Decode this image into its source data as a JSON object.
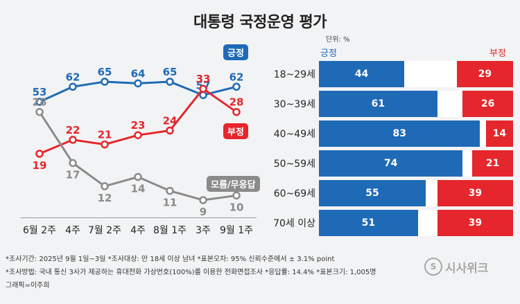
{
  "title": "대통령 국정운영 평가",
  "unit": "단위: %",
  "chart_data": [
    {
      "type": "line",
      "categories": [
        "6월 2주",
        "4주",
        "7월 2주",
        "4주",
        "8월 1주",
        "3주",
        "9월 1주"
      ],
      "series": [
        {
          "name": "긍정",
          "values": [
            53,
            62,
            65,
            64,
            65,
            57,
            62
          ],
          "color": "#1f6ab6"
        },
        {
          "name": "부정",
          "values": [
            19,
            22,
            21,
            23,
            24,
            33,
            28
          ],
          "color": "#e5262c"
        },
        {
          "name": "모름/무응답",
          "values": [
            28,
            17,
            12,
            14,
            11,
            9,
            10
          ],
          "color": "#8a8a8a"
        }
      ]
    },
    {
      "type": "bar",
      "stacked": true,
      "legend": {
        "positive": "긍정",
        "negative": "부정"
      },
      "categories": [
        "18~29세",
        "30~39세",
        "40~49세",
        "50~59세",
        "60~69세",
        "70세 이상"
      ],
      "series": [
        {
          "name": "긍정",
          "values": [
            44,
            61,
            83,
            74,
            55,
            51
          ],
          "color": "#1f6ab6"
        },
        {
          "name": "부정",
          "values": [
            29,
            26,
            14,
            21,
            39,
            39
          ],
          "color": "#e5262c"
        }
      ]
    }
  ],
  "footer": {
    "line1": "*조사기간: 2025년 9월 1일~3일 *조사대상: 만 18세 이상 남녀 *표본오차: 95% 신뢰수준에서 ± 3.1% point",
    "line2": "*조사방법: 국내 통신 3사가 제공하는 휴대전화 가상번호(100%)를 이용한 전화면접조사 *응답률: 14.4% *표본크기: 1,005명",
    "line3": "그래픽=이주희"
  },
  "logo": "시사위크",
  "logo_mark": "S"
}
